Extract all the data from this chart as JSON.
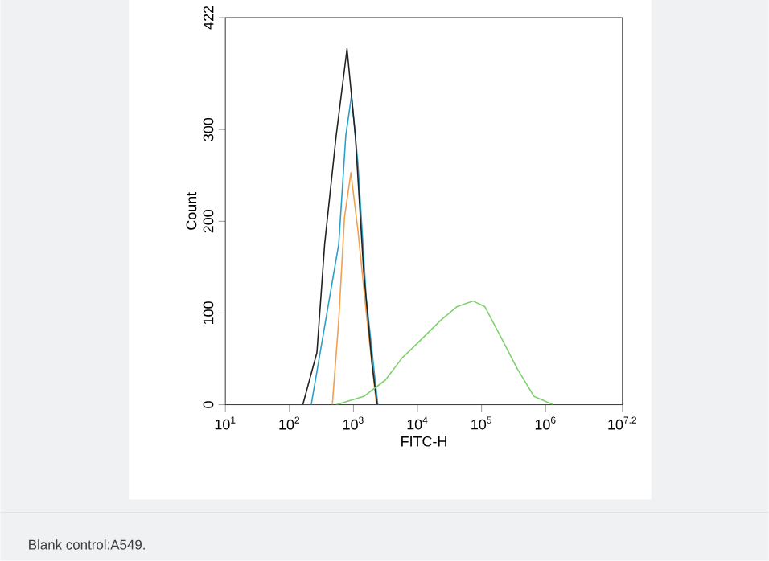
{
  "chart_data": {
    "type": "line",
    "xlabel": "FITC-H",
    "ylabel": "Count",
    "log": "x",
    "xlim": [
      10,
      15848932
    ],
    "ylim": [
      0,
      422
    ],
    "xticks": [
      {
        "value": 10,
        "label": "10$^{1}$"
      },
      {
        "value": 100,
        "label": "10$^{2}$"
      },
      {
        "value": 1000,
        "label": "10$^{3}$"
      },
      {
        "value": 10000,
        "label": "10$^{4}$"
      },
      {
        "value": 100000,
        "label": "10$^{5}$"
      },
      {
        "value": 1000000,
        "label": "10$^{6}$"
      },
      {
        "value": 15848932,
        "label": "10$^{7.2}$"
      }
    ],
    "yticks": [
      0,
      100,
      200,
      300,
      422
    ],
    "grid": false,
    "marker": "none",
    "line_style": "solid",
    "annotations": [
      "Blank control:A549."
    ],
    "series": [
      {
        "color": "#f0a050",
        "x": [
          468,
          589,
          724,
          912,
          1175,
          1585,
          2290
        ],
        "values": [
          0,
          92,
          204,
          253,
          190,
          100,
          0
        ]
      },
      {
        "color": "#2aa0c8",
        "x": [
          219,
          589,
          759,
          933,
          1175,
          1585,
          2400
        ],
        "values": [
          0,
          175,
          293,
          337,
          263,
          116,
          0
        ]
      },
      {
        "color": "#222222",
        "x": [
          162,
          269,
          355,
          537,
          794,
          1072,
          1445,
          1950,
          2344
        ],
        "values": [
          0,
          57,
          175,
          293,
          388,
          293,
          145,
          45,
          0
        ]
      },
      {
        "color": "#80d070",
        "x": [
          537,
          1445,
          3162,
          5754,
          12589,
          22909,
          41687,
          74131,
          112202,
          199526,
          363078,
          660693,
          1318257
        ],
        "values": [
          0,
          9,
          27,
          51,
          74,
          92,
          107,
          113,
          107,
          74,
          39,
          9,
          0
        ]
      }
    ]
  }
}
